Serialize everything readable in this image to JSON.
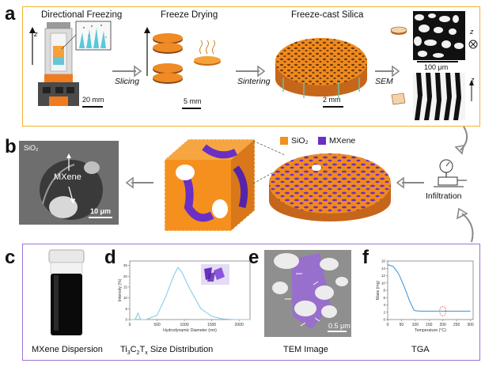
{
  "panels": {
    "a": {
      "letter": "a",
      "steps": [
        "Directional Freezing",
        "Freeze Drying",
        "Freeze-cast Silica"
      ],
      "arrows": [
        "Slicing",
        "Sintering",
        "SEM"
      ],
      "scalebars": [
        "20 mm",
        "5 mm",
        "2 mm",
        "100 μm"
      ],
      "axis_z": "z"
    },
    "b": {
      "letter": "b",
      "legend": [
        {
          "label": "SiO₂",
          "color": "#f5901e"
        },
        {
          "label": "MXene",
          "color": "#6a2fc4"
        }
      ],
      "sem_labels": [
        "SiO₂",
        "MXene"
      ],
      "scalebar": "10 μm",
      "infiltration": "Infiltration"
    },
    "c": {
      "letter": "c",
      "caption": "MXene Dispersion"
    },
    "d": {
      "letter": "d",
      "caption_main": "Ti",
      "caption_sub1": "3",
      "caption_mid": "C",
      "caption_sub2": "2",
      "caption_t": "T",
      "caption_sub3": "x",
      "caption_rest": " Size Distribution",
      "xlabel": "Hydrodynamic Diameter (nm)",
      "ylabel": "Intensity (%)",
      "xticks": [
        "0",
        "500",
        "1000",
        "1500",
        "2000"
      ],
      "yticks": [
        "0",
        "5",
        "10",
        "15",
        "20",
        "25"
      ]
    },
    "e": {
      "letter": "e",
      "caption": "TEM Image",
      "scalebar": "0.5 μm"
    },
    "f": {
      "letter": "f",
      "caption": "TGA",
      "xlabel": "Temperature (°C)",
      "ylabel": "Mass (mg)",
      "xticks": [
        "0",
        "50",
        "100",
        "150",
        "200",
        "250",
        "300"
      ],
      "yticks": [
        "0",
        "2",
        "4",
        "6",
        "8",
        "10",
        "12",
        "14",
        "16"
      ]
    }
  },
  "chart_data": [
    {
      "type": "line",
      "xlabel": "Hydrodynamic Diameter (nm)",
      "ylabel": "Intensity (%)",
      "xlim": [
        0,
        2200
      ],
      "ylim": [
        0,
        27
      ],
      "x": [
        0,
        100,
        150,
        200,
        300,
        500,
        650,
        800,
        880,
        950,
        1100,
        1300,
        1500,
        1700,
        1900,
        2200
      ],
      "y": [
        0,
        0,
        3,
        0,
        0,
        2,
        10,
        20,
        24,
        22,
        14,
        5,
        1.5,
        0.3,
        0,
        0
      ]
    },
    {
      "type": "line",
      "xlabel": "Temperature (°C)",
      "ylabel": "Mass (mg)",
      "xlim": [
        0,
        310
      ],
      "ylim": [
        0,
        16
      ],
      "x": [
        0,
        20,
        40,
        60,
        80,
        95,
        100,
        120,
        200,
        300
      ],
      "y": [
        15,
        14.5,
        12.5,
        9,
        5,
        2.6,
        2.4,
        2.3,
        2.3,
        2.3
      ]
    }
  ]
}
